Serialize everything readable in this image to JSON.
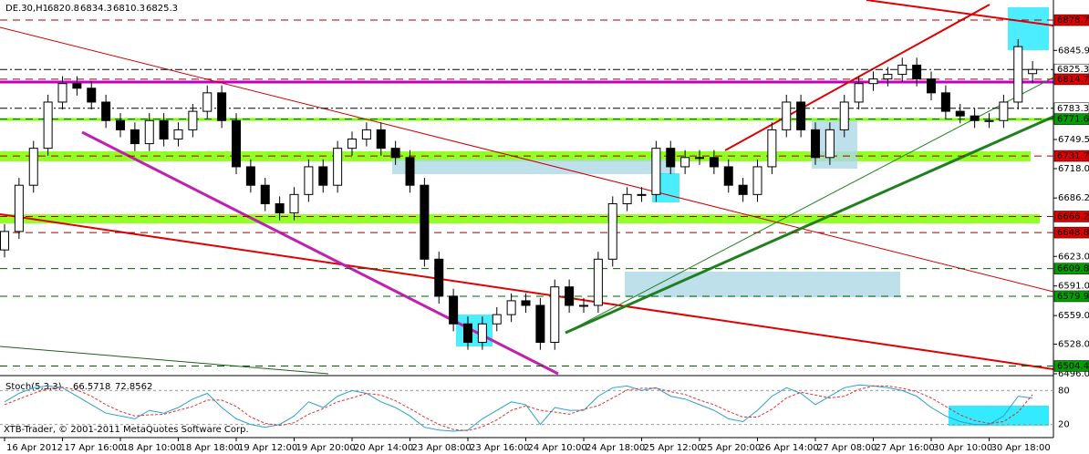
{
  "chart_data": {
    "type": "candlestick",
    "title": "DE.30,H1",
    "categories": [
      "16 Apr 2012",
      null,
      null,
      null,
      "17 Apr 16:00",
      null,
      null,
      null,
      "18 Apr 10:00",
      null,
      null,
      null,
      "18 Apr 18:00",
      null,
      null,
      null,
      "19 Apr 12:00",
      null,
      null,
      null,
      "19 Apr 20:00",
      null,
      null,
      null,
      "20 Apr 14:00",
      null,
      null,
      null,
      "23 Apr 08:00",
      null,
      null,
      null,
      "23 Apr 16:00",
      null,
      null,
      null,
      "24 Apr 10:00",
      null,
      null,
      null,
      "24 Apr 18:00",
      null,
      null,
      null,
      "25 Apr 12:00",
      null,
      null,
      null,
      "25 Apr 20:00",
      null,
      null,
      null,
      "26 Apr 14:00",
      null,
      null,
      null,
      "27 Apr 08:00",
      null,
      null,
      null,
      "27 Apr 16:00",
      null,
      null,
      null,
      "30 Apr 10:00",
      null,
      null,
      null,
      "30 Apr 18:00",
      null,
      null,
      null
    ],
    "open": [
      6630,
      6650,
      6700,
      6740,
      6790,
      6810,
      6805,
      6790,
      6770,
      6760,
      6745,
      6770,
      6750,
      6760,
      6780,
      6800,
      6770,
      6720,
      6700,
      6680,
      6670,
      6690,
      6720,
      6700,
      6740,
      6750,
      6760,
      6740,
      6730,
      6700,
      6620,
      6580,
      6550,
      6530,
      6550,
      6560,
      6575,
      6570,
      6530,
      6590,
      6570,
      6570,
      6620,
      6680,
      6690,
      6690,
      6740,
      6720,
      6730,
      6730,
      6720,
      6700,
      6690,
      6720,
      6760,
      6790,
      6760,
      6730,
      6760,
      6790,
      6810,
      6815,
      6820,
      6830,
      6815,
      6800,
      6780,
      6775,
      6770,
      6770,
      6790,
      6820.8
    ],
    "high": [
      6658,
      6708,
      6748,
      6798,
      6818,
      6818,
      6813,
      6798,
      6778,
      6768,
      6778,
      6778,
      6768,
      6788,
      6808,
      6808,
      6778,
      6728,
      6708,
      6688,
      6698,
      6728,
      6728,
      6748,
      6758,
      6768,
      6768,
      6748,
      6738,
      6708,
      6628,
      6588,
      6558,
      6558,
      6568,
      6583,
      6583,
      6578,
      6598,
      6598,
      6578,
      6628,
      6688,
      6698,
      6698,
      6748,
      6748,
      6738,
      6738,
      6738,
      6728,
      6708,
      6728,
      6768,
      6798,
      6798,
      6768,
      6768,
      6798,
      6818,
      6823,
      6828,
      6838,
      6838,
      6823,
      6808,
      6788,
      6783,
      6778,
      6798,
      6858,
      6834.3
    ],
    "low": [
      6622,
      6642,
      6692,
      6732,
      6782,
      6797,
      6782,
      6762,
      6752,
      6737,
      6737,
      6742,
      6742,
      6752,
      6772,
      6762,
      6712,
      6692,
      6672,
      6662,
      6662,
      6682,
      6692,
      6692,
      6732,
      6742,
      6732,
      6722,
      6692,
      6612,
      6572,
      6542,
      6522,
      6522,
      6542,
      6552,
      6562,
      6522,
      6522,
      6562,
      6562,
      6562,
      6612,
      6672,
      6682,
      6682,
      6712,
      6712,
      6722,
      6712,
      6692,
      6682,
      6682,
      6712,
      6752,
      6752,
      6722,
      6722,
      6752,
      6782,
      6802,
      6807,
      6812,
      6807,
      6792,
      6772,
      6767,
      6762,
      6762,
      6762,
      6782,
      6810.3
    ],
    "close": [
      6650,
      6700,
      6740,
      6790,
      6810,
      6805,
      6790,
      6770,
      6760,
      6745,
      6770,
      6750,
      6760,
      6780,
      6800,
      6770,
      6720,
      6700,
      6680,
      6670,
      6690,
      6720,
      6700,
      6740,
      6750,
      6760,
      6740,
      6730,
      6700,
      6620,
      6580,
      6550,
      6530,
      6550,
      6560,
      6575,
      6570,
      6530,
      6590,
      6570,
      6570,
      6620,
      6680,
      6690,
      6690,
      6740,
      6720,
      6730,
      6730,
      6720,
      6700,
      6690,
      6720,
      6760,
      6790,
      6760,
      6730,
      6760,
      6790,
      6810,
      6815,
      6820,
      6830,
      6815,
      6800,
      6780,
      6775,
      6770,
      6770,
      6790,
      6850,
      6825.3
    ],
    "up_color": "#ffffff",
    "down_color": "#000000",
    "ylim": [
      6496,
      6897.5
    ],
    "yticks": [
      6845.9,
      6749.5,
      {
        "value": 6718,
        "label": "6718.0"
      },
      6686.2,
      {
        "value": 6623,
        "label": "6623.0"
      },
      {
        "value": 6591,
        "label": "6591.0"
      },
      {
        "value": 6559,
        "label": "6559.0"
      },
      {
        "value": 6528,
        "label": "6528.0"
      },
      {
        "value": 6496,
        "label": "6496.0"
      }
    ],
    "levels": [
      {
        "value": 6878.7,
        "color": "#e00000"
      },
      {
        "value": 6825.3,
        "color": "#ffffff"
      },
      {
        "value": 6814.7,
        "color": "#e00000"
      },
      {
        "value": 6783.3,
        "color": "#ffffff"
      },
      {
        "value": 6771.6,
        "color": "#00a000"
      },
      {
        "value": 6731.7,
        "color": "#e00000"
      },
      {
        "value": 6666.2,
        "color": "#e00000"
      },
      {
        "value": 6648.8,
        "color": "#e00000"
      },
      {
        "value": 6609.8,
        "color": "#00a000"
      },
      {
        "value": 6579.9,
        "color": "#00a000"
      },
      {
        "value": 6504.4,
        "color": "#00a000"
      }
    ],
    "indicator": {
      "name": "Stoch(5,3,3)",
      "ylim": [
        0,
        100
      ],
      "yticks": [
        80,
        20
      ],
      "series": [
        {
          "color": "#2aa0d0",
          "values": [
            60,
            75,
            85,
            88,
            85,
            70,
            55,
            40,
            35,
            30,
            45,
            40,
            50,
            65,
            75,
            50,
            30,
            20,
            15,
            20,
            35,
            60,
            50,
            70,
            80,
            75,
            60,
            50,
            35,
            15,
            10,
            8,
            10,
            30,
            45,
            60,
            55,
            20,
            50,
            45,
            45,
            70,
            85,
            88,
            80,
            85,
            70,
            65,
            55,
            45,
            30,
            25,
            45,
            70,
            85,
            75,
            55,
            70,
            85,
            90,
            88,
            85,
            80,
            70,
            50,
            35,
            25,
            20,
            20,
            35,
            70,
            66.5718
          ]
        },
        {
          "color": "#e03030",
          "dashed": true,
          "values": [
            55,
            65,
            75,
            83,
            86,
            81,
            70,
            55,
            43,
            35,
            37,
            38,
            45,
            52,
            63,
            63,
            52,
            33,
            22,
            18,
            23,
            38,
            48,
            60,
            67,
            75,
            72,
            62,
            48,
            33,
            20,
            11,
            9,
            16,
            28,
            45,
            53,
            45,
            42,
            38,
            47,
            53,
            67,
            81,
            84,
            84,
            78,
            73,
            63,
            55,
            43,
            33,
            33,
            47,
            67,
            77,
            72,
            67,
            70,
            82,
            88,
            88,
            84,
            78,
            67,
            52,
            37,
            27,
            22,
            25,
            42,
            72.8562
          ]
        }
      ]
    },
    "footer": "XTB-Trader, © 2001-2011 MetaQuotes Software Corp."
  }
}
